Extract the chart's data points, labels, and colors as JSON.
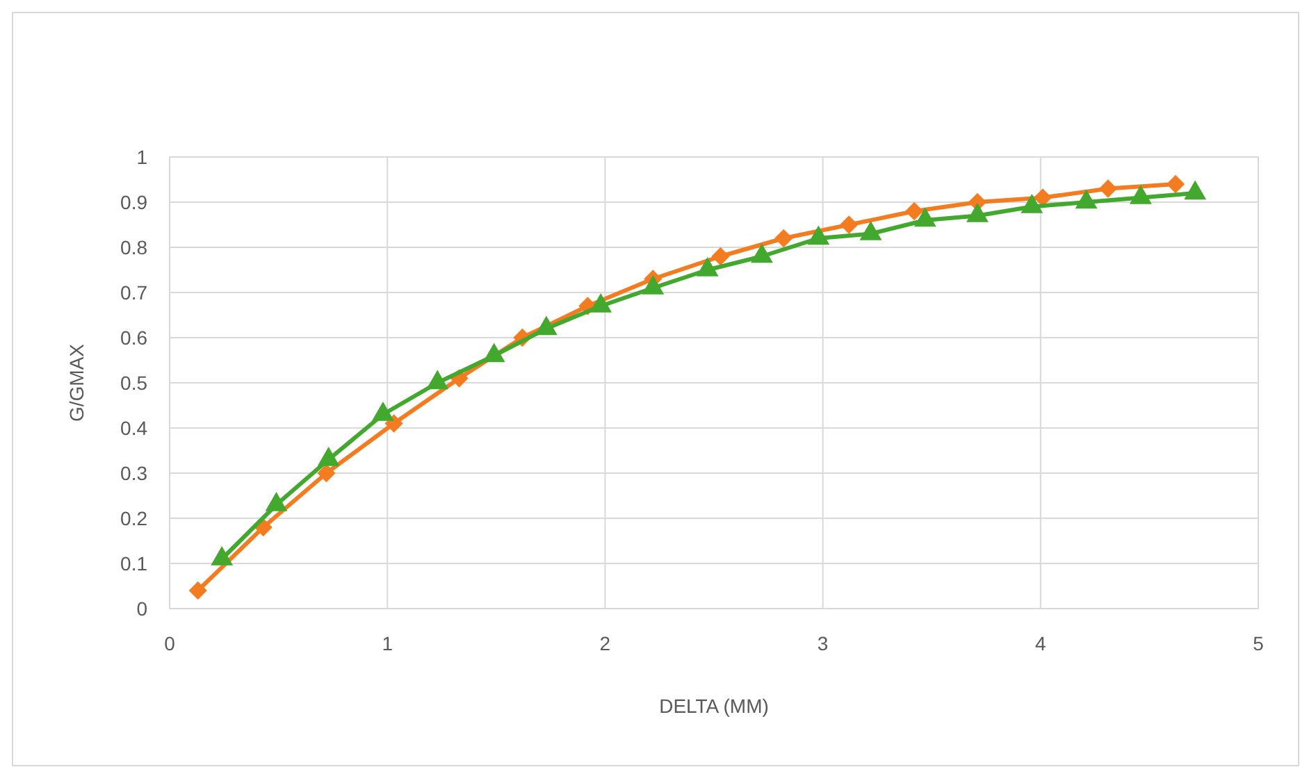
{
  "chart_data": {
    "type": "line",
    "xlabel": "DELTA (MM)",
    "ylabel": "G/GMAX",
    "xlim": [
      0,
      5
    ],
    "xticks": [
      0,
      1,
      2,
      3,
      4,
      5
    ],
    "ylim": [
      0,
      1
    ],
    "yticks": [
      0,
      0.1,
      0.2,
      0.3,
      0.4,
      0.5,
      0.6,
      0.7,
      0.8,
      0.9,
      1
    ],
    "grid": true,
    "line_style": "solid",
    "series": [
      {
        "color": "#f47c20",
        "marker": "diamond",
        "x": [
          0.13,
          0.43,
          0.72,
          1.03,
          1.33,
          1.62,
          1.92,
          2.22,
          2.53,
          2.82,
          3.12,
          3.42,
          3.71,
          4.01,
          4.31,
          4.62
        ],
        "values": [
          0.04,
          0.18,
          0.3,
          0.41,
          0.51,
          0.6,
          0.67,
          0.73,
          0.78,
          0.82,
          0.85,
          0.88,
          0.9,
          0.91,
          0.93,
          0.94
        ]
      },
      {
        "color": "#43a82e",
        "marker": "triangle",
        "x": [
          0.24,
          0.49,
          0.73,
          0.98,
          1.23,
          1.49,
          1.73,
          1.98,
          2.22,
          2.47,
          2.72,
          2.98,
          3.22,
          3.47,
          3.71,
          3.96,
          4.21,
          4.46,
          4.71
        ],
        "values": [
          0.11,
          0.23,
          0.33,
          0.43,
          0.5,
          0.56,
          0.62,
          0.67,
          0.71,
          0.75,
          0.78,
          0.82,
          0.83,
          0.86,
          0.87,
          0.89,
          0.9,
          0.91,
          0.92
        ]
      }
    ]
  }
}
